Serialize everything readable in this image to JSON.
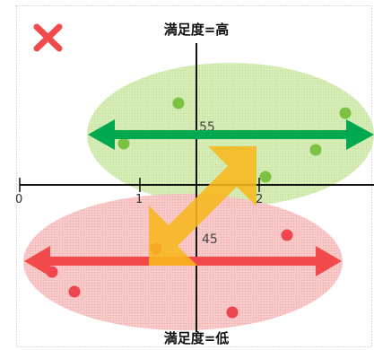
{
  "labels": {
    "top": "満足度=高",
    "bottom": "満足度=低",
    "value_high": "55",
    "value_low": "45"
  },
  "ticks": [
    "0",
    "1",
    "2"
  ],
  "colors": {
    "high_ellipse": "#a8d66a",
    "low_ellipse": "#f08c8c",
    "high_arrow": "#00a84f",
    "low_arrow": "#f24a4a",
    "high_dot": "#7cc242",
    "low_dot": "#f0454f",
    "center_arrow": "#f7b71c",
    "close_mark": "#f04a4a",
    "axis": "#111111"
  },
  "icons": {
    "close": "close-x-icon",
    "transition": "diagonal-double-arrow-icon"
  }
}
